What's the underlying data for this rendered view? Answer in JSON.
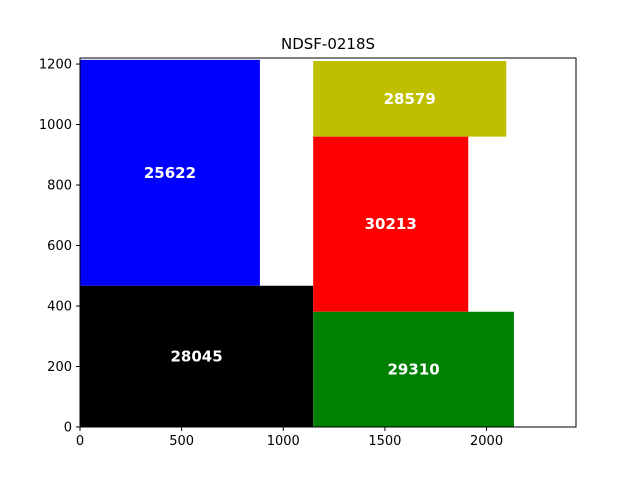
{
  "chart_data": {
    "type": "treemap",
    "title": "NDSF-0218S",
    "xlabel": "",
    "ylabel": "",
    "xlim": [
      0,
      2440
    ],
    "ylim": [
      0,
      1220
    ],
    "x_ticks": [
      0,
      500,
      1000,
      1500,
      2000
    ],
    "y_ticks": [
      0,
      200,
      400,
      600,
      800,
      1000,
      1200
    ],
    "x_tick_labels": [
      "0",
      "500",
      "1000",
      "1500",
      "2000"
    ],
    "y_tick_labels": [
      "0",
      "200",
      "400",
      "600",
      "800",
      "1000",
      "1200"
    ],
    "rectangles": [
      {
        "label": "25622",
        "x": 0,
        "y": 467,
        "width": 885,
        "height": 747,
        "color": "#0000ff"
      },
      {
        "label": "28045",
        "x": 0,
        "y": 0,
        "width": 1147,
        "height": 467,
        "color": "#000000"
      },
      {
        "label": "28579",
        "x": 1147,
        "y": 960,
        "width": 950,
        "height": 250,
        "color": "#bfbf00"
      },
      {
        "label": "30213",
        "x": 1147,
        "y": 381,
        "width": 763,
        "height": 579,
        "color": "#ff0000"
      },
      {
        "label": "29310",
        "x": 1147,
        "y": 0,
        "width": 988,
        "height": 381,
        "color": "#008000"
      }
    ]
  }
}
